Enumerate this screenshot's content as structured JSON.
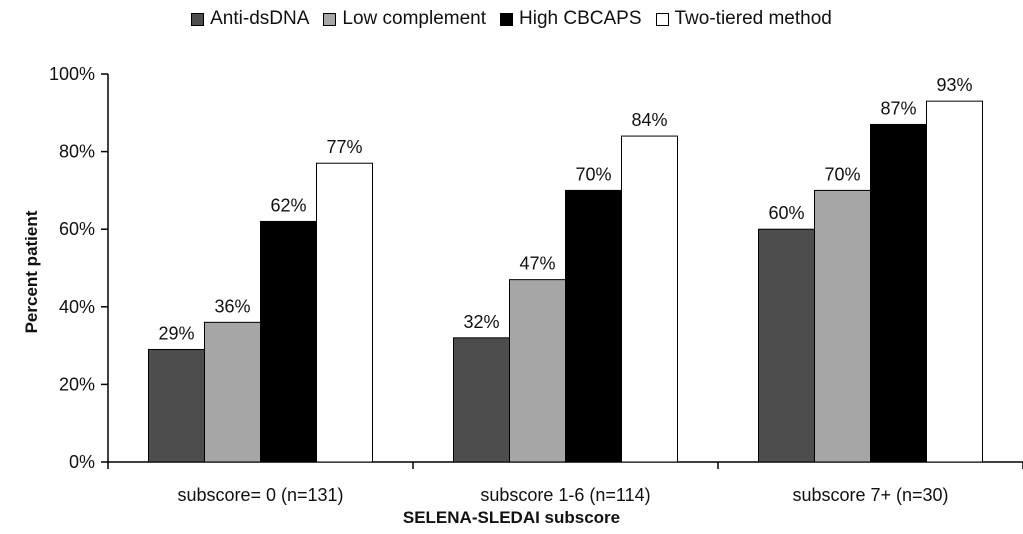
{
  "chart_data": {
    "type": "bar",
    "categories": [
      "subscore= 0 (n=131)",
      "subscore 1-6 (n=114)",
      "subscore 7+ (n=30)"
    ],
    "series": [
      {
        "name": "Anti-dsDNA",
        "values": [
          29,
          32,
          60
        ],
        "labels": [
          "29%",
          "32%",
          "60%"
        ],
        "color": "#4d4d4d"
      },
      {
        "name": "Low complement",
        "values": [
          36,
          47,
          70
        ],
        "labels": [
          "36%",
          "47%",
          "70%"
        ],
        "color": "#a6a6a6"
      },
      {
        "name": "High CBCAPS",
        "values": [
          62,
          70,
          87
        ],
        "labels": [
          "62%",
          "70%",
          "87%"
        ],
        "color": "#000000"
      },
      {
        "name": "Two-tiered method",
        "values": [
          77,
          84,
          93
        ],
        "labels": [
          "77%",
          "84%",
          "93%"
        ],
        "color": "#ffffff"
      }
    ],
    "xlabel": "SELENA-SLEDAI subscore",
    "ylabel": "Percent patient",
    "ylim": [
      0,
      100
    ],
    "yticks": [
      0,
      20,
      40,
      60,
      80,
      100
    ],
    "ytick_labels": [
      "0%",
      "20%",
      "40%",
      "60%",
      "80%",
      "100%"
    ],
    "legend_position": "top-center",
    "grid": false
  }
}
